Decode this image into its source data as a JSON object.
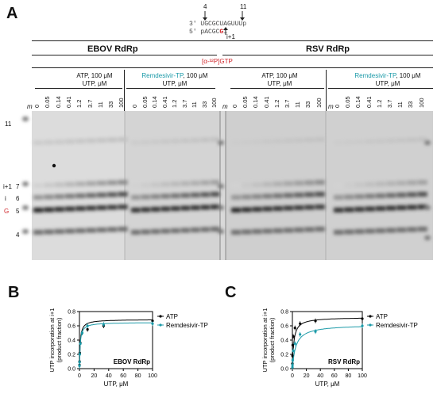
{
  "panels": {
    "a": "A",
    "b": "B",
    "c": "C"
  },
  "template": {
    "pos4": "4",
    "pos11": "11",
    "strand3": "3' UGCGCUAGUUUp",
    "strand5_prefix": "5' pACGC",
    "strand5_g": "G",
    "strand5_i": "i",
    "i_plus_1": "i+1"
  },
  "headers": {
    "ebov": "EBOV RdRp",
    "rsv": "RSV RdRp",
    "gtp": "[α-³²P]GTP",
    "atp_line1": "ATP, 100 μM",
    "atp_line2": "UTP, μM",
    "rem_line1_teal": "Remdesivir-TP",
    "rem_line1_rest": ", 100 μM",
    "rem_line2": "UTP, μM"
  },
  "lane_concs": [
    "0",
    "0.05",
    "0.14",
    "0.41",
    "1.2",
    "3.7",
    "11",
    "33",
    "100"
  ],
  "marker_label": "m",
  "band_labels": {
    "b11": "11",
    "iplus1": "i+1",
    "b7": "7",
    "i": "i",
    "b6": "6",
    "g": "G",
    "b5": "5",
    "b4": "4"
  },
  "chart_data": [
    {
      "type": "scatter",
      "panel": "B",
      "title": "EBOV RdRp",
      "xlabel": "UTP, μM",
      "ylabel": "UTP incorporation at i+1 (product fraction)",
      "xlim": [
        0,
        100
      ],
      "ylim": [
        0,
        0.8
      ],
      "xticks": [
        "0",
        "20",
        "40",
        "60",
        "80",
        "100"
      ],
      "yticks": [
        "0.0",
        "0.2",
        "0.4",
        "0.6",
        "0.8"
      ],
      "series": [
        {
          "name": "ATP",
          "color": "#000000",
          "x": [
            0.05,
            0.14,
            0.41,
            1.2,
            3.7,
            11,
            33,
            100
          ],
          "y": [
            0.05,
            0.1,
            0.22,
            0.36,
            0.5,
            0.55,
            0.6,
            0.67
          ]
        },
        {
          "name": "Remdesivir-TP",
          "color": "#1b9aa8",
          "x": [
            0.05,
            0.14,
            0.41,
            1.2,
            3.7,
            11,
            33,
            100
          ],
          "y": [
            0.04,
            0.09,
            0.2,
            0.35,
            0.5,
            0.6,
            0.62,
            0.63
          ]
        }
      ]
    },
    {
      "type": "scatter",
      "panel": "C",
      "title": "RSV RdRp",
      "xlabel": "UTP, μM",
      "ylabel": "UTP incorporation at i+1 (product fraction)",
      "xlim": [
        0,
        100
      ],
      "ylim": [
        0,
        0.8
      ],
      "xticks": [
        "0",
        "20",
        "40",
        "60",
        "80",
        "100"
      ],
      "yticks": [
        "0.0",
        "0.2",
        "0.4",
        "0.6",
        "0.8"
      ],
      "series": [
        {
          "name": "ATP",
          "color": "#000000",
          "x": [
            0.05,
            0.14,
            0.41,
            1.2,
            3.7,
            11,
            33,
            100
          ],
          "y": [
            0.07,
            0.18,
            0.33,
            0.45,
            0.57,
            0.63,
            0.67,
            0.7
          ]
        },
        {
          "name": "Remdesivir-TP",
          "color": "#1b9aa8",
          "x": [
            0.05,
            0.14,
            0.41,
            1.2,
            3.7,
            11,
            33,
            100
          ],
          "y": [
            0.02,
            0.05,
            0.12,
            0.25,
            0.35,
            0.48,
            0.52,
            0.6
          ]
        }
      ]
    }
  ]
}
